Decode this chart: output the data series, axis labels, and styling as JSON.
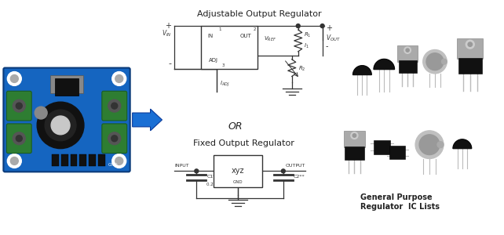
{
  "background_color": "#ffffff",
  "title": "Adjustable Output Regulator",
  "fixed_label": "Fixed Output Regulator",
  "or_text": "OR",
  "arrow_color": "#1a6fd4",
  "general_purpose_text": "General Purpose\nRegulator  IC Lists",
  "text_color": "#222222",
  "circuit_color": "#333333",
  "pcb_blue": "#1565c0",
  "pcb_border": "#0a3a7a",
  "pcb_green": "#2e7d32",
  "pcb_green_border": "#1b5e20"
}
